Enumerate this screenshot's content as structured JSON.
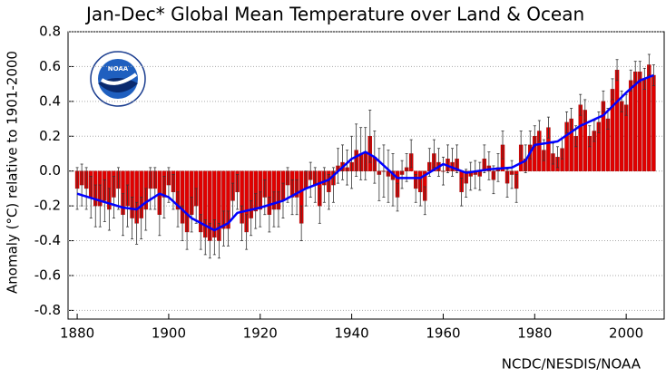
{
  "chart_data": {
    "type": "bar",
    "title": "Jan-Dec* Global Mean Temperature over Land & Ocean",
    "y_label": "Anomaly (°C) relative to 1901-2000",
    "source": "NCDC/NESDIS/NOAA",
    "logo": "NOAA",
    "color": "#e00000",
    "smooth_color": "#0000ff",
    "grid": true,
    "xlim": [
      1878,
      2008.5
    ],
    "xticks": [
      1880,
      1900,
      1920,
      1940,
      1960,
      1980,
      2000
    ],
    "ylim": [
      -0.85,
      0.8
    ],
    "yticks": [
      0.8,
      0.6,
      0.4,
      0.2,
      {
        "value": 0,
        "label": "0.0"
      },
      -0.2,
      -0.4,
      -0.6,
      -0.8
    ],
    "x": [
      1880,
      1881,
      1882,
      1883,
      1884,
      1885,
      1886,
      1887,
      1888,
      1889,
      1890,
      1891,
      1892,
      1893,
      1894,
      1895,
      1896,
      1897,
      1898,
      1899,
      1900,
      1901,
      1902,
      1903,
      1904,
      1905,
      1906,
      1907,
      1908,
      1909,
      1910,
      1911,
      1912,
      1913,
      1914,
      1915,
      1916,
      1917,
      1918,
      1919,
      1920,
      1921,
      1922,
      1923,
      1924,
      1925,
      1926,
      1927,
      1928,
      1929,
      1930,
      1931,
      1932,
      1933,
      1934,
      1935,
      1936,
      1937,
      1938,
      1939,
      1940,
      1941,
      1942,
      1943,
      1944,
      1945,
      1946,
      1947,
      1948,
      1949,
      1950,
      1951,
      1952,
      1953,
      1954,
      1955,
      1956,
      1957,
      1958,
      1959,
      1960,
      1961,
      1962,
      1963,
      1964,
      1965,
      1966,
      1967,
      1968,
      1969,
      1970,
      1971,
      1972,
      1973,
      1974,
      1975,
      1976,
      1977,
      1978,
      1979,
      1980,
      1981,
      1982,
      1983,
      1984,
      1985,
      1986,
      1987,
      1988,
      1989,
      1990,
      1991,
      1992,
      1993,
      1994,
      1995,
      1996,
      1997,
      1998,
      1999,
      2000,
      2001,
      2002,
      2003,
      2004,
      2005,
      2006
    ],
    "values": [
      -0.1,
      -0.08,
      -0.1,
      -0.15,
      -0.2,
      -0.2,
      -0.17,
      -0.22,
      -0.15,
      -0.1,
      -0.25,
      -0.2,
      -0.27,
      -0.3,
      -0.27,
      -0.22,
      -0.1,
      -0.1,
      -0.25,
      -0.15,
      -0.08,
      -0.12,
      -0.22,
      -0.3,
      -0.35,
      -0.25,
      -0.2,
      -0.35,
      -0.38,
      -0.4,
      -0.38,
      -0.4,
      -0.33,
      -0.33,
      -0.17,
      -0.12,
      -0.3,
      -0.35,
      -0.27,
      -0.23,
      -0.22,
      -0.15,
      -0.25,
      -0.22,
      -0.22,
      -0.17,
      -0.08,
      -0.15,
      -0.15,
      -0.3,
      -0.1,
      -0.05,
      -0.08,
      -0.2,
      -0.08,
      -0.12,
      -0.08,
      0.03,
      0.05,
      0.02,
      0.05,
      0.12,
      0.1,
      0.1,
      0.2,
      0.08,
      -0.02,
      0.0,
      -0.03,
      -0.05,
      -0.15,
      -0.02,
      0.02,
      0.1,
      -0.1,
      -0.12,
      -0.17,
      0.05,
      0.1,
      0.05,
      0.0,
      0.07,
      0.05,
      0.07,
      -0.12,
      -0.07,
      -0.03,
      -0.02,
      -0.03,
      0.07,
      0.03,
      -0.05,
      0.02,
      0.15,
      -0.07,
      -0.02,
      -0.1,
      0.15,
      0.07,
      0.15,
      0.2,
      0.23,
      0.12,
      0.25,
      0.1,
      0.08,
      0.13,
      0.28,
      0.3,
      0.2,
      0.38,
      0.35,
      0.2,
      0.23,
      0.28,
      0.4,
      0.3,
      0.47,
      0.58,
      0.4,
      0.38,
      0.52,
      0.57,
      0.57,
      0.53,
      0.61,
      0.55
    ],
    "errors": [
      0.12,
      0.12,
      0.12,
      0.12,
      0.12,
      0.12,
      0.12,
      0.12,
      0.12,
      0.12,
      0.12,
      0.12,
      0.12,
      0.12,
      0.12,
      0.12,
      0.12,
      0.12,
      0.12,
      0.12,
      0.1,
      0.1,
      0.1,
      0.1,
      0.1,
      0.1,
      0.1,
      0.1,
      0.1,
      0.1,
      0.1,
      0.1,
      0.1,
      0.1,
      0.1,
      0.1,
      0.1,
      0.1,
      0.1,
      0.1,
      0.1,
      0.1,
      0.1,
      0.1,
      0.1,
      0.1,
      0.1,
      0.1,
      0.1,
      0.1,
      0.1,
      0.1,
      0.1,
      0.1,
      0.1,
      0.1,
      0.1,
      0.1,
      0.1,
      0.1,
      0.15,
      0.15,
      0.15,
      0.15,
      0.15,
      0.15,
      0.15,
      0.15,
      0.15,
      0.15,
      0.08,
      0.08,
      0.08,
      0.08,
      0.08,
      0.08,
      0.08,
      0.08,
      0.08,
      0.08,
      0.08,
      0.08,
      0.08,
      0.08,
      0.08,
      0.08,
      0.08,
      0.08,
      0.08,
      0.08,
      0.08,
      0.08,
      0.08,
      0.08,
      0.08,
      0.08,
      0.08,
      0.08,
      0.08,
      0.08,
      0.06,
      0.06,
      0.06,
      0.06,
      0.06,
      0.06,
      0.06,
      0.06,
      0.06,
      0.06,
      0.06,
      0.06,
      0.06,
      0.06,
      0.06,
      0.06,
      0.06,
      0.06,
      0.06,
      0.06,
      0.06,
      0.06,
      0.06,
      0.06,
      0.06,
      0.06,
      0.06
    ],
    "smooth": {
      "x": [
        1880,
        1885,
        1890,
        1893,
        1895,
        1898,
        1900,
        1905,
        1910,
        1913,
        1915,
        1920,
        1925,
        1930,
        1935,
        1940,
        1943,
        1945,
        1950,
        1955,
        1960,
        1965,
        1970,
        1975,
        1978,
        1980,
        1985,
        1990,
        1995,
        2000,
        2003,
        2006
      ],
      "values": [
        -0.13,
        -0.17,
        -0.21,
        -0.22,
        -0.18,
        -0.13,
        -0.15,
        -0.27,
        -0.34,
        -0.3,
        -0.24,
        -0.21,
        -0.17,
        -0.1,
        -0.05,
        0.07,
        0.11,
        0.08,
        -0.04,
        -0.04,
        0.04,
        -0.01,
        0.01,
        0.02,
        0.06,
        0.15,
        0.17,
        0.26,
        0.32,
        0.45,
        0.52,
        0.55
      ]
    }
  }
}
